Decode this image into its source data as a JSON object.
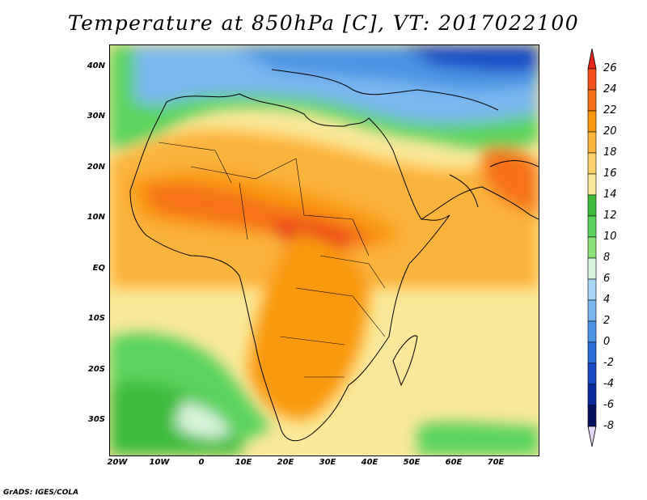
{
  "title": "Temperature at 850hPa [C], VT: 2017022100",
  "footer": "GrADS: IGES/COLA",
  "lat_ticks": [
    "40N",
    "30N",
    "20N",
    "10N",
    "EQ",
    "10S",
    "20S",
    "30S"
  ],
  "lon_ticks": [
    "20W",
    "10W",
    "0",
    "10E",
    "20E",
    "30E",
    "40E",
    "50E",
    "60E",
    "70E"
  ],
  "colorbar": {
    "labels": [
      "26",
      "24",
      "22",
      "20",
      "18",
      "16",
      "14",
      "12",
      "10",
      "8",
      "6",
      "4",
      "2",
      "0",
      "-2",
      "-4",
      "-6",
      "-8"
    ],
    "colors": [
      "#e8271c",
      "#f4511c",
      "#f77318",
      "#f9980f",
      "#fbb43a",
      "#fcd16a",
      "#fbe89a",
      "#3ebb3c",
      "#5ad35e",
      "#8de27c",
      "#d9f6dc",
      "#a7d6f4",
      "#7bb7ee",
      "#4c94e4",
      "#2b6fdc",
      "#1848c7",
      "#0c2a9c",
      "#05105c",
      "#e2d6f4"
    ]
  }
}
